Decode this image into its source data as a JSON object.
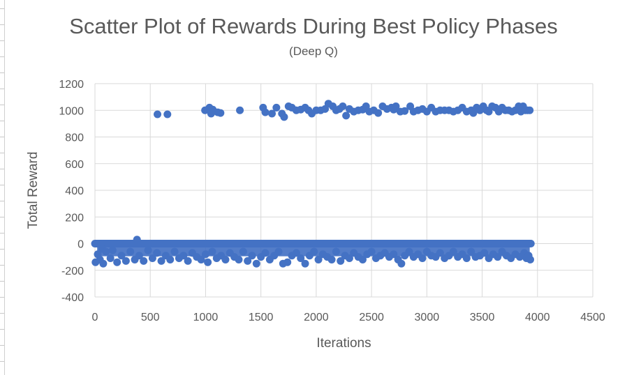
{
  "chart_data": {
    "type": "scatter",
    "title": "Scatter Plot of Rewards During Best Policy Phases",
    "subtitle": "(Deep Q)",
    "xlabel": "Iterations",
    "ylabel": "Total Reward",
    "xlim": [
      0,
      4500
    ],
    "ylim": [
      -400,
      1200
    ],
    "xticks": [
      "0",
      "500",
      "1000",
      "1500",
      "2000",
      "2500",
      "3000",
      "3500",
      "4000",
      "4500"
    ],
    "yticks": [
      "-400",
      "-200",
      "0",
      "200",
      "400",
      "600",
      "800",
      "1000",
      "1200"
    ],
    "grid": true,
    "color": "#4472C4",
    "series": [
      {
        "points_high": [
          [
            565,
            970
          ],
          [
            655,
            970
          ],
          [
            995,
            1000
          ],
          [
            1035,
            1020
          ],
          [
            1050,
            975
          ],
          [
            1065,
            1005
          ],
          [
            1110,
            985
          ],
          [
            1135,
            980
          ],
          [
            1310,
            1000
          ],
          [
            1520,
            1020
          ],
          [
            1540,
            985
          ],
          [
            1600,
            975
          ],
          [
            1640,
            1020
          ],
          [
            1690,
            975
          ],
          [
            1710,
            950
          ],
          [
            1750,
            1030
          ],
          [
            1780,
            1020
          ],
          [
            1820,
            1000
          ],
          [
            1860,
            1005
          ],
          [
            1900,
            1020
          ],
          [
            1930,
            1000
          ],
          [
            1960,
            975
          ],
          [
            2000,
            1000
          ],
          [
            2040,
            1000
          ],
          [
            2080,
            1010
          ],
          [
            2110,
            1050
          ],
          [
            2150,
            1030
          ],
          [
            2180,
            1000
          ],
          [
            2210,
            1010
          ],
          [
            2240,
            1030
          ],
          [
            2270,
            960
          ],
          [
            2300,
            1010
          ],
          [
            2340,
            990
          ],
          [
            2380,
            1000
          ],
          [
            2420,
            1005
          ],
          [
            2450,
            1030
          ],
          [
            2480,
            990
          ],
          [
            2520,
            1000
          ],
          [
            2560,
            980
          ],
          [
            2600,
            1030
          ],
          [
            2640,
            1010
          ],
          [
            2680,
            1020
          ],
          [
            2700,
            1005
          ],
          [
            2720,
            1030
          ],
          [
            2760,
            990
          ],
          [
            2800,
            995
          ],
          [
            2850,
            1030
          ],
          [
            2880,
            990
          ],
          [
            2920,
            1000
          ],
          [
            2960,
            1010
          ],
          [
            3000,
            990
          ],
          [
            3040,
            1020
          ],
          [
            3080,
            990
          ],
          [
            3120,
            1000
          ],
          [
            3160,
            1000
          ],
          [
            3200,
            1000
          ],
          [
            3240,
            990
          ],
          [
            3280,
            1000
          ],
          [
            3320,
            1020
          ],
          [
            3360,
            990
          ],
          [
            3400,
            1000
          ],
          [
            3420,
            980
          ],
          [
            3450,
            1020
          ],
          [
            3480,
            1000
          ],
          [
            3510,
            1030
          ],
          [
            3540,
            1000
          ],
          [
            3560,
            990
          ],
          [
            3590,
            1030
          ],
          [
            3620,
            1020
          ],
          [
            3650,
            990
          ],
          [
            3680,
            1020
          ],
          [
            3710,
            1000
          ],
          [
            3740,
            1000
          ],
          [
            3770,
            990
          ],
          [
            3800,
            1000
          ],
          [
            3830,
            1030
          ],
          [
            3850,
            990
          ],
          [
            3870,
            1030
          ],
          [
            3890,
            1000
          ],
          [
            3910,
            1000
          ],
          [
            3930,
            1000
          ]
        ],
        "points_low": [
          [
            5,
            -140
          ],
          [
            25,
            -80
          ],
          [
            45,
            -120
          ],
          [
            65,
            -40
          ],
          [
            75,
            -150
          ],
          [
            100,
            -60
          ],
          [
            140,
            -110
          ],
          [
            160,
            -50
          ],
          [
            200,
            -140
          ],
          [
            240,
            -90
          ],
          [
            280,
            -130
          ],
          [
            320,
            -60
          ],
          [
            360,
            -120
          ],
          [
            380,
            30
          ],
          [
            400,
            -90
          ],
          [
            440,
            -130
          ],
          [
            480,
            -50
          ],
          [
            520,
            -110
          ],
          [
            560,
            -70
          ],
          [
            600,
            -130
          ],
          [
            640,
            -90
          ],
          [
            680,
            -120
          ],
          [
            720,
            -60
          ],
          [
            760,
            -110
          ],
          [
            800,
            -90
          ],
          [
            840,
            -130
          ],
          [
            880,
            -70
          ],
          [
            920,
            -100
          ],
          [
            960,
            -120
          ],
          [
            1000,
            -80
          ],
          [
            1020,
            -140
          ],
          [
            1060,
            -60
          ],
          [
            1100,
            -110
          ],
          [
            1140,
            -90
          ],
          [
            1180,
            -120
          ],
          [
            1220,
            -70
          ],
          [
            1260,
            -100
          ],
          [
            1300,
            -120
          ],
          [
            1340,
            -60
          ],
          [
            1380,
            -130
          ],
          [
            1420,
            -90
          ],
          [
            1460,
            -150
          ],
          [
            1500,
            -100
          ],
          [
            1540,
            -70
          ],
          [
            1580,
            -120
          ],
          [
            1620,
            -90
          ],
          [
            1660,
            -60
          ],
          [
            1700,
            -150
          ],
          [
            1740,
            -140
          ],
          [
            1780,
            -90
          ],
          [
            1820,
            -70
          ],
          [
            1860,
            -110
          ],
          [
            1900,
            -150
          ],
          [
            1940,
            -90
          ],
          [
            1980,
            -60
          ],
          [
            2020,
            -120
          ],
          [
            2060,
            -80
          ],
          [
            2100,
            -100
          ],
          [
            2140,
            -120
          ],
          [
            2180,
            -60
          ],
          [
            2220,
            -130
          ],
          [
            2260,
            -90
          ],
          [
            2300,
            -110
          ],
          [
            2340,
            -70
          ],
          [
            2380,
            -100
          ],
          [
            2420,
            -120
          ],
          [
            2460,
            -80
          ],
          [
            2500,
            -60
          ],
          [
            2540,
            -110
          ],
          [
            2580,
            -90
          ],
          [
            2620,
            -70
          ],
          [
            2660,
            -100
          ],
          [
            2700,
            -80
          ],
          [
            2740,
            -120
          ],
          [
            2770,
            -150
          ],
          [
            2800,
            -90
          ],
          [
            2840,
            -60
          ],
          [
            2880,
            -100
          ],
          [
            2920,
            -80
          ],
          [
            2960,
            -110
          ],
          [
            3000,
            -60
          ],
          [
            3040,
            -90
          ],
          [
            3080,
            -100
          ],
          [
            3120,
            -70
          ],
          [
            3160,
            -110
          ],
          [
            3200,
            -90
          ],
          [
            3240,
            -60
          ],
          [
            3280,
            -100
          ],
          [
            3320,
            -80
          ],
          [
            3360,
            -110
          ],
          [
            3400,
            -60
          ],
          [
            3440,
            -100
          ],
          [
            3480,
            -90
          ],
          [
            3520,
            -70
          ],
          [
            3560,
            -110
          ],
          [
            3600,
            -80
          ],
          [
            3640,
            -100
          ],
          [
            3680,
            -60
          ],
          [
            3720,
            -90
          ],
          [
            3760,
            -110
          ],
          [
            3800,
            -80
          ],
          [
            3840,
            -100
          ],
          [
            3880,
            -70
          ],
          [
            3900,
            -110
          ],
          [
            3920,
            -90
          ],
          [
            3935,
            -120
          ]
        ]
      }
    ]
  }
}
